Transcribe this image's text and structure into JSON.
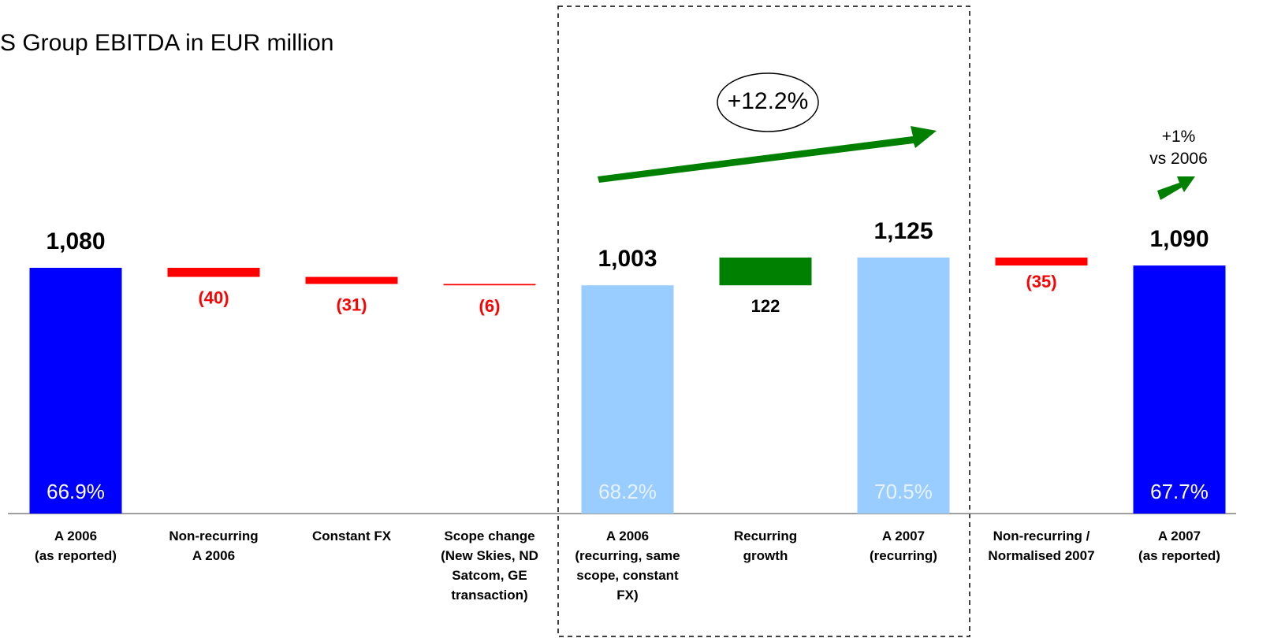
{
  "chart_data": {
    "type": "waterfall",
    "title": "S Group EBITDA in EUR million",
    "categories": [
      "A 2006\n(as reported)",
      "Non-recurring\nA 2006",
      "Constant FX",
      "Scope change\n(New Skies, ND\nSatcom, GE\ntransaction)",
      "A 2006\n(recurring, same\nscope, constant\nFX)",
      "Recurring\ngrowth",
      "A 2007\n(recurring)",
      "Non-recurring /\nNormalised 2007",
      "A 2007\n(as reported)"
    ],
    "measure": [
      "absolute",
      "relative",
      "relative",
      "relative",
      "absolute",
      "relative",
      "absolute",
      "relative",
      "absolute"
    ],
    "values": [
      1080,
      -40,
      -31,
      -6,
      1003,
      122,
      1125,
      -35,
      1090
    ],
    "value_labels": [
      "1,080",
      "(40)",
      "(31)",
      "(6)",
      "1,003",
      "122",
      "1,125",
      "(35)",
      "1,090"
    ],
    "colors": [
      "#0000ff",
      "#ff0000",
      "#ff0000",
      "#ff0000",
      "#99ccff",
      "#008000",
      "#99ccff",
      "#ff0000",
      "#0000ff"
    ],
    "margin_labels": [
      "66.9%",
      null,
      null,
      null,
      "68.2%",
      null,
      "70.5%",
      null,
      "67.7%"
    ],
    "annotations": [
      "+12.2%",
      "+1%\nvs 2006"
    ]
  }
}
